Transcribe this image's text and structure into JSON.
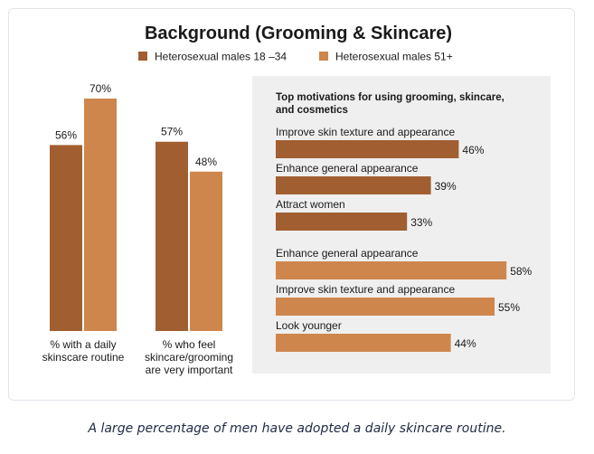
{
  "caption": "A large percentage of men have adopted a daily skincare routine.",
  "colors": {
    "dark": "#a15e30",
    "light": "#cf864c",
    "panel_bg": "#efefef",
    "text": "#1a1a1a"
  },
  "chart_data": [
    {
      "type": "bar",
      "title": "Background (Grooming & Skincare)",
      "legend_position": "top",
      "categories": [
        "% with a daily skinscare routine",
        "% who feel skincare/grooming are very important"
      ],
      "category_lines": [
        [
          "% with a daily",
          "skinscare routine"
        ],
        [
          "% who feel",
          "skincare/grooming",
          "are very important"
        ]
      ],
      "series": [
        {
          "name": "Heterosexual males 18 –34",
          "values": [
            56,
            57
          ],
          "labels": [
            "56%",
            "57%"
          ]
        },
        {
          "name": "Heterosexual males 51+",
          "values": [
            70,
            48
          ],
          "labels": [
            "70%",
            "48%"
          ]
        }
      ],
      "ylim": [
        0,
        70
      ],
      "grid": false
    },
    {
      "type": "bar",
      "orientation": "horizontal",
      "title_lines": [
        "Top motivations for using grooming, skincare,",
        "and cosmetics"
      ],
      "groups": [
        {
          "series_name": "Heterosexual males 18 –34",
          "items": [
            {
              "label": "Improve skin texture and appearance",
              "value": 46,
              "value_label": "46%"
            },
            {
              "label": "Enhance general appearance",
              "value": 39,
              "value_label": "39%"
            },
            {
              "label": "Attract women",
              "value": 33,
              "value_label": "33%"
            }
          ]
        },
        {
          "series_name": "Heterosexual males 51+",
          "items": [
            {
              "label": "Enhance general appearance",
              "value": 58,
              "value_label": "58%"
            },
            {
              "label": "Improve skin texture and appearance",
              "value": 55,
              "value_label": "55%"
            },
            {
              "label": "Look younger",
              "value": 44,
              "value_label": "44%"
            }
          ]
        }
      ],
      "grid": false
    }
  ]
}
